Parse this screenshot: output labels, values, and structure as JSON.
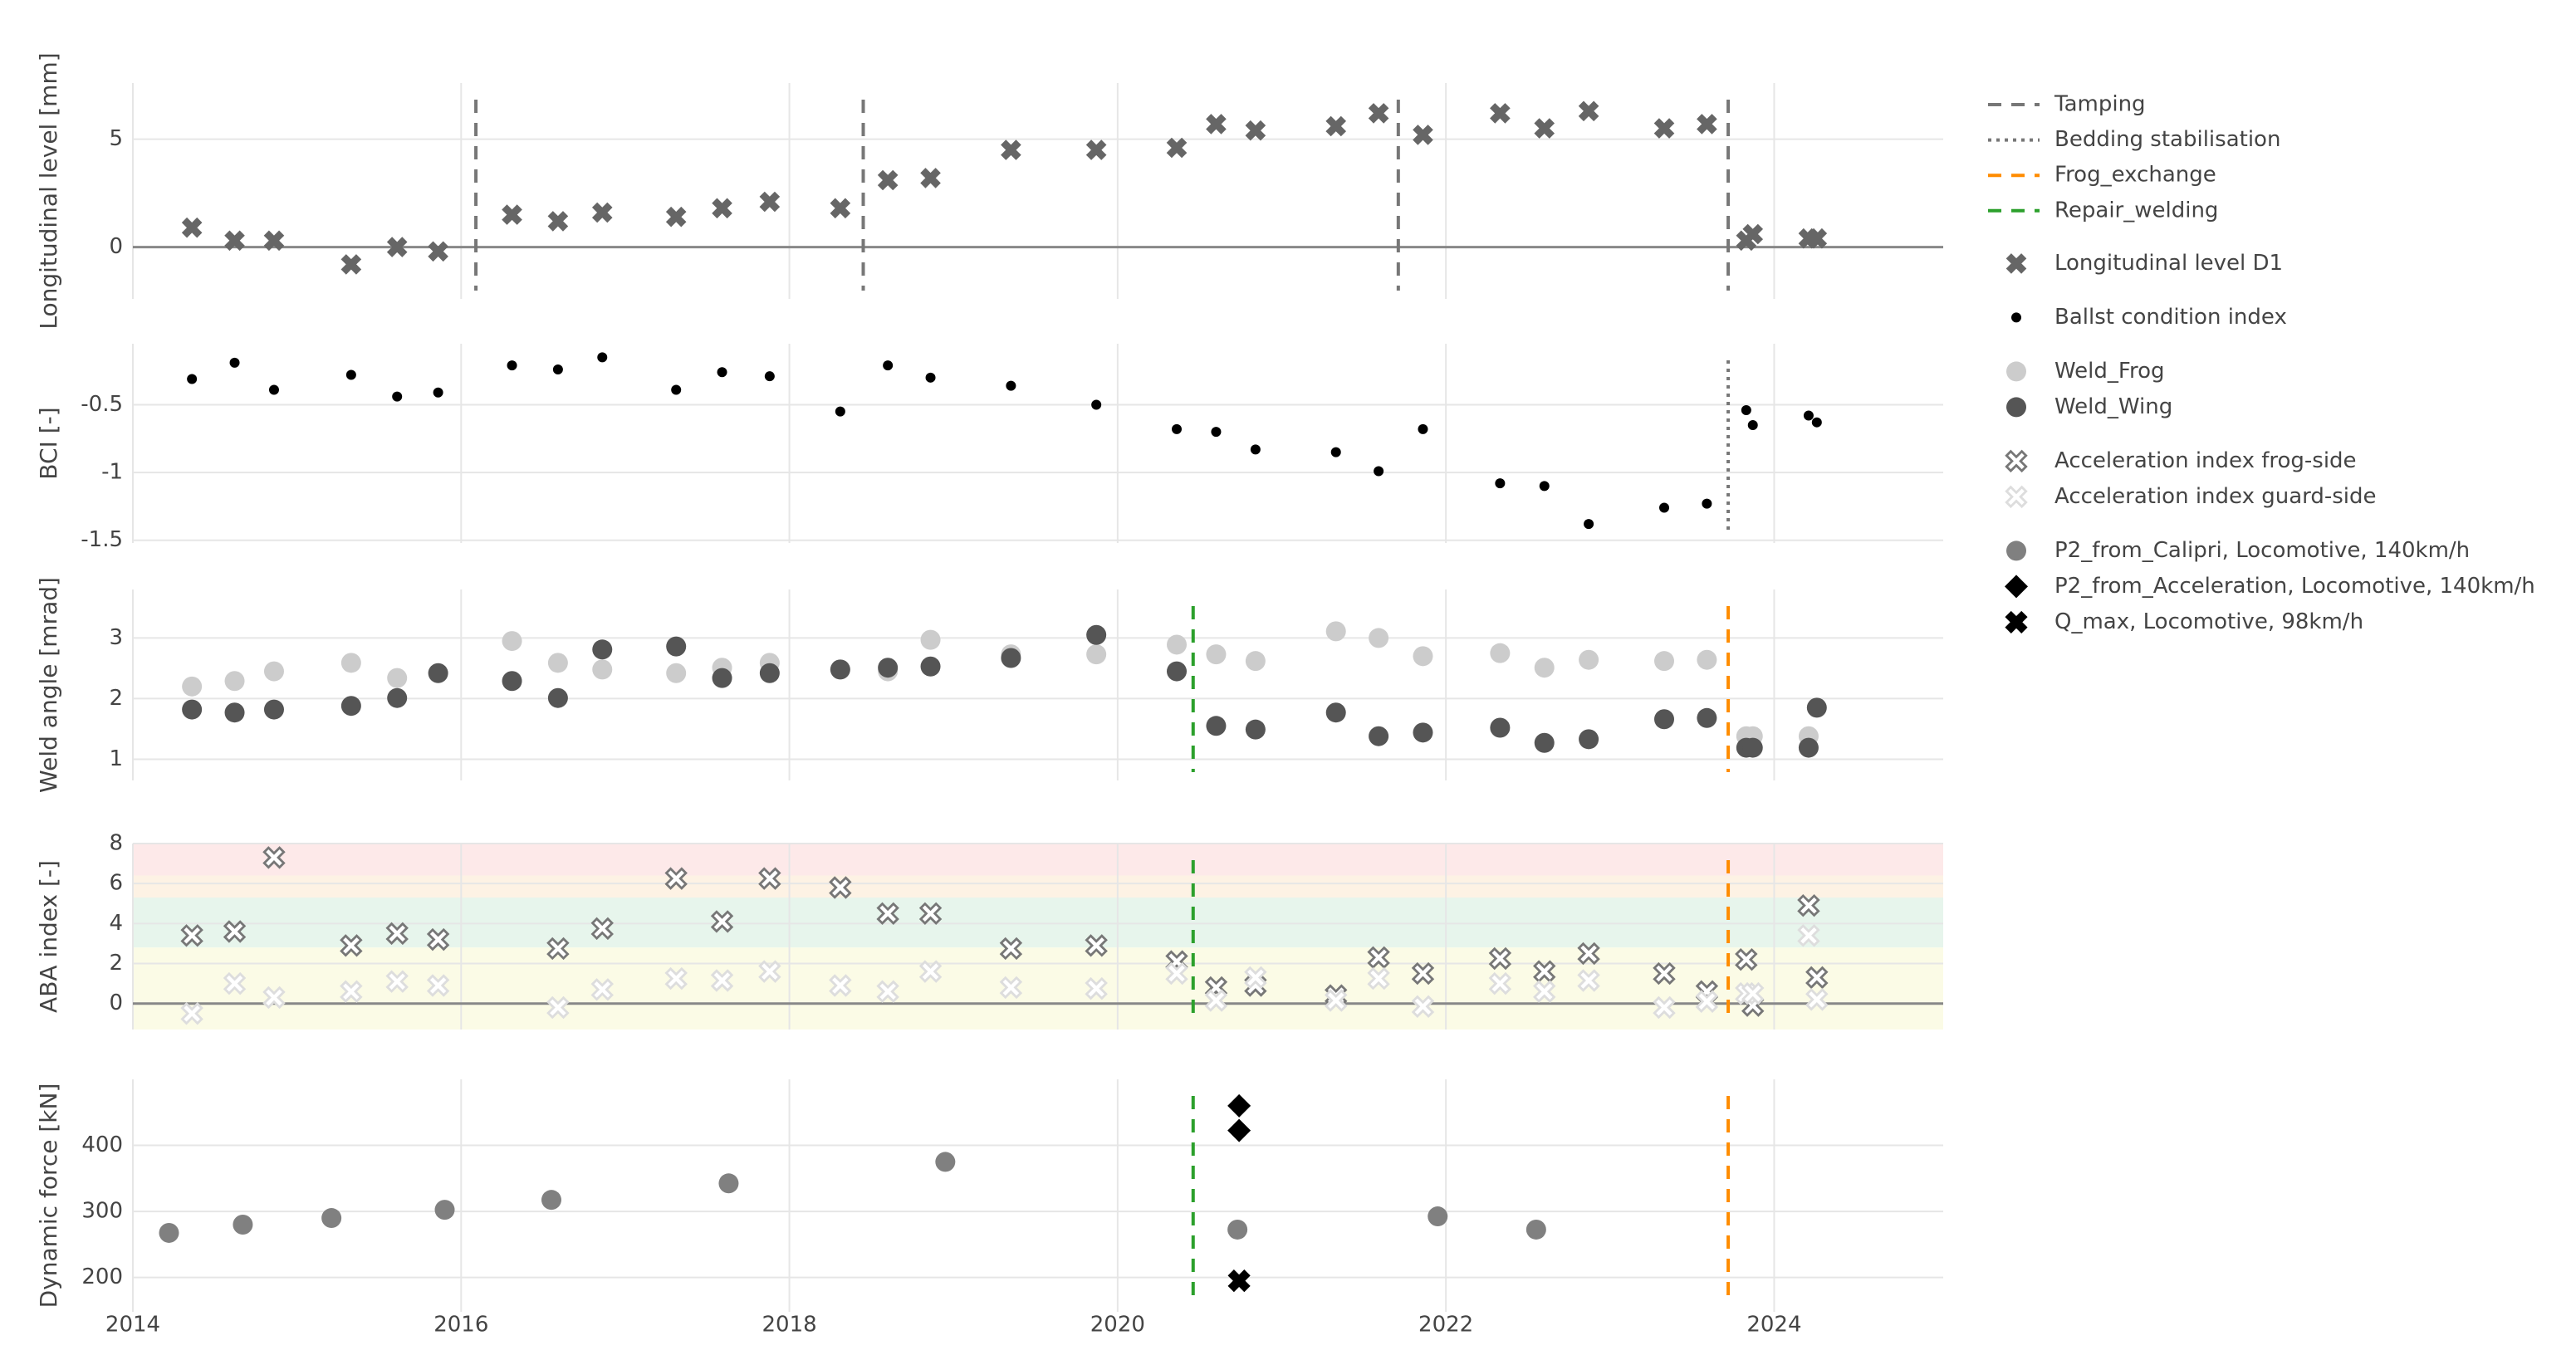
{
  "chart_data": [
    {
      "type": "scatter",
      "ylabel": "Longitudinal level [mm]",
      "xlim": [
        2014,
        2025.03
      ],
      "xticks": [
        2014,
        2016,
        2018,
        2020,
        2022,
        2024
      ],
      "ylim": [
        -2.4,
        7.6
      ],
      "yticks": [
        0,
        5
      ],
      "grid": true,
      "zeroline": true,
      "vlines": [
        {
          "name": "Tamping",
          "color": "#777777",
          "dash": "dash",
          "x": [
            2016.09,
            2018.45,
            2021.71,
            2023.72
          ]
        }
      ],
      "series": [
        {
          "name": "Longitudinal level D1",
          "color": "#666666",
          "marker": "x-thick",
          "x": [
            2014.36,
            2014.62,
            2014.86,
            2015.33,
            2015.61,
            2015.86,
            2016.31,
            2016.59,
            2016.86,
            2017.31,
            2017.59,
            2017.88,
            2018.31,
            2018.6,
            2018.86,
            2019.35,
            2019.87,
            2020.36,
            2020.6,
            2020.84,
            2021.33,
            2021.59,
            2021.86,
            2022.33,
            2022.6,
            2022.87,
            2023.33,
            2023.59,
            2023.83,
            2023.87,
            2024.21,
            2024.26
          ],
          "values": [
            0.9,
            0.3,
            0.3,
            -0.8,
            0.0,
            -0.2,
            1.5,
            1.2,
            1.6,
            1.4,
            1.8,
            2.1,
            1.8,
            3.1,
            3.2,
            4.5,
            4.5,
            4.6,
            5.7,
            5.4,
            5.6,
            6.2,
            5.2,
            6.2,
            5.5,
            6.3,
            5.5,
            5.7,
            0.3,
            0.6,
            0.4,
            0.4
          ]
        }
      ]
    },
    {
      "type": "scatter",
      "ylabel": "BCI [-]",
      "xlim": [
        2014,
        2025.03
      ],
      "xticks": [
        2014,
        2016,
        2018,
        2020,
        2022,
        2024
      ],
      "ylim": [
        -1.52,
        -0.05
      ],
      "yticks": [
        -1.5,
        -1,
        -0.5
      ],
      "grid": true,
      "vlines": [
        {
          "name": "Bedding stabilisation",
          "color": "#777777",
          "dash": "dot",
          "x": [
            2023.72
          ]
        }
      ],
      "series": [
        {
          "name": "Ballst condition index",
          "color": "#000000",
          "marker": "dot",
          "x": [
            2014.36,
            2014.62,
            2014.86,
            2015.33,
            2015.61,
            2015.86,
            2016.31,
            2016.59,
            2016.86,
            2017.31,
            2017.59,
            2017.88,
            2018.31,
            2018.6,
            2018.86,
            2019.35,
            2019.87,
            2020.36,
            2020.6,
            2020.84,
            2021.33,
            2021.59,
            2021.86,
            2022.33,
            2022.6,
            2022.87,
            2023.33,
            2023.59,
            2023.83,
            2023.87,
            2024.21,
            2024.26
          ],
          "values": [
            -0.31,
            -0.19,
            -0.39,
            -0.28,
            -0.44,
            -0.41,
            -0.21,
            -0.24,
            -0.15,
            -0.39,
            -0.26,
            -0.29,
            -0.55,
            -0.21,
            -0.3,
            -0.36,
            -0.5,
            -0.68,
            -0.7,
            -0.83,
            -0.85,
            -0.99,
            -0.68,
            -1.08,
            -1.1,
            -1.38,
            -1.26,
            -1.23,
            -0.54,
            -0.65,
            -0.58,
            -0.63
          ]
        }
      ]
    },
    {
      "type": "scatter",
      "ylabel": "Weld angle [mrad]",
      "xlim": [
        2014,
        2025.03
      ],
      "xticks": [
        2014,
        2016,
        2018,
        2020,
        2022,
        2024
      ],
      "ylim": [
        0.65,
        3.8
      ],
      "yticks": [
        1,
        2,
        3
      ],
      "grid": true,
      "vlines": [
        {
          "name": "Frog_exchange",
          "color": "#ff8c00",
          "dash": "dash",
          "x": [
            2023.72
          ]
        },
        {
          "name": "Repair_welding",
          "color": "#2ca02c",
          "dash": "dash",
          "x": [
            2020.46
          ]
        }
      ],
      "series": [
        {
          "name": "Weld_Frog",
          "color": "#cccccc",
          "marker": "circle",
          "x": [
            2014.36,
            2014.62,
            2014.86,
            2015.33,
            2015.61,
            2016.31,
            2016.59,
            2016.86,
            2017.31,
            2017.59,
            2017.88,
            2018.31,
            2018.6,
            2018.86,
            2019.35,
            2019.87,
            2020.36,
            2020.6,
            2020.84,
            2021.33,
            2021.59,
            2021.86,
            2022.33,
            2022.6,
            2022.87,
            2023.33,
            2023.59,
            2023.83,
            2023.87,
            2024.21
          ],
          "values": [
            2.2,
            2.29,
            2.45,
            2.59,
            2.34,
            2.95,
            2.59,
            2.48,
            2.42,
            2.51,
            2.59,
            2.48,
            2.45,
            2.97,
            2.73,
            2.73,
            2.89,
            2.73,
            2.62,
            3.11,
            3.0,
            2.7,
            2.75,
            2.51,
            2.64,
            2.62,
            2.64,
            1.38,
            1.38,
            1.38
          ]
        },
        {
          "name": "Weld_Wing",
          "color": "#555555",
          "marker": "circle",
          "x": [
            2014.36,
            2014.62,
            2014.86,
            2015.33,
            2015.61,
            2015.86,
            2016.31,
            2016.59,
            2016.86,
            2017.31,
            2017.59,
            2017.88,
            2018.31,
            2018.6,
            2018.86,
            2019.35,
            2019.87,
            2020.36,
            2020.6,
            2020.84,
            2021.33,
            2021.59,
            2021.86,
            2022.33,
            2022.6,
            2022.87,
            2023.33,
            2023.59,
            2023.83,
            2023.87,
            2024.21,
            2024.26
          ],
          "values": [
            1.82,
            1.77,
            1.82,
            1.88,
            2.01,
            2.42,
            2.29,
            2.01,
            2.81,
            2.86,
            2.34,
            2.42,
            2.48,
            2.51,
            2.53,
            2.67,
            3.05,
            2.45,
            1.55,
            1.49,
            1.77,
            1.38,
            1.44,
            1.52,
            1.27,
            1.33,
            1.66,
            1.68,
            1.19,
            1.19,
            1.19,
            1.85
          ]
        }
      ]
    },
    {
      "type": "scatter",
      "ylabel": "ABA index [-]",
      "xlim": [
        2014,
        2025.03
      ],
      "xticks": [
        2014,
        2016,
        2018,
        2020,
        2022,
        2024
      ],
      "ylim": [
        -1.3,
        8
      ],
      "yticks": [
        0,
        2,
        4,
        6,
        8
      ],
      "grid": true,
      "zeroline": true,
      "bands": [
        {
          "y": [
            6.4,
            8
          ],
          "color": "#fde9e9"
        },
        {
          "y": [
            5.3,
            6.4
          ],
          "color": "#fdf2e4"
        },
        {
          "y": [
            2.8,
            5.3
          ],
          "color": "#e7f5ec"
        },
        {
          "y": [
            -1.3,
            2.8
          ],
          "color": "#fbfbe6"
        }
      ],
      "vlines": [
        {
          "color": "#ff8c00",
          "dash": "dash",
          "x": [
            2023.72
          ]
        },
        {
          "color": "#2ca02c",
          "dash": "dash",
          "x": [
            2020.46
          ]
        }
      ],
      "series": [
        {
          "name": "Acceleration index frog-side",
          "color": "#777777",
          "marker": "x-open",
          "x": [
            2014.36,
            2014.62,
            2014.86,
            2015.33,
            2015.61,
            2015.86,
            2016.59,
            2016.86,
            2017.31,
            2017.59,
            2017.88,
            2018.31,
            2018.6,
            2018.86,
            2019.35,
            2019.87,
            2020.36,
            2020.6,
            2020.84,
            2021.33,
            2021.59,
            2021.86,
            2022.33,
            2022.6,
            2022.87,
            2023.33,
            2023.59,
            2023.83,
            2023.87,
            2024.21,
            2024.26
          ],
          "values": [
            3.4,
            3.6,
            7.3,
            2.9,
            3.5,
            3.2,
            2.75,
            3.75,
            6.25,
            4.1,
            6.25,
            5.8,
            4.5,
            4.5,
            2.75,
            2.9,
            2.1,
            0.8,
            0.9,
            0.4,
            2.3,
            1.5,
            2.25,
            1.6,
            2.5,
            1.5,
            0.6,
            2.2,
            -0.1,
            4.9,
            1.3
          ]
        },
        {
          "name": "Acceleration index guard-side",
          "color": "#dddddd",
          "marker": "x-open",
          "x": [
            2014.36,
            2014.62,
            2014.86,
            2015.33,
            2015.61,
            2015.86,
            2016.59,
            2016.86,
            2017.31,
            2017.59,
            2017.88,
            2018.31,
            2018.6,
            2018.86,
            2019.35,
            2019.87,
            2020.36,
            2020.6,
            2020.84,
            2021.33,
            2021.59,
            2021.86,
            2022.33,
            2022.6,
            2022.87,
            2023.33,
            2023.59,
            2023.83,
            2023.87,
            2024.21,
            2024.26
          ],
          "values": [
            -0.5,
            1.0,
            0.3,
            0.6,
            1.1,
            0.9,
            -0.2,
            0.7,
            1.25,
            1.15,
            1.6,
            0.9,
            0.6,
            1.6,
            0.8,
            0.75,
            1.5,
            0.15,
            1.3,
            0.15,
            1.25,
            -0.15,
            1.0,
            0.6,
            1.15,
            -0.2,
            0.1,
            0.5,
            0.5,
            3.4,
            0.2
          ]
        }
      ]
    },
    {
      "type": "scatter",
      "ylabel": "Dynamic force [kN]",
      "xlim": [
        2014,
        2025.03
      ],
      "xticks": [
        2014,
        2016,
        2018,
        2020,
        2022,
        2024
      ],
      "ylim": [
        148,
        500
      ],
      "yticks": [
        200,
        300,
        400
      ],
      "grid": true,
      "vlines": [
        {
          "color": "#2ca02c",
          "dash": "dash",
          "x": [
            2020.46
          ]
        },
        {
          "color": "#ff8c00",
          "dash": "dash",
          "x": [
            2023.72
          ]
        }
      ],
      "series": [
        {
          "name": "P2_from_Calipri, Locomotive, 140km/h",
          "color": "#808080",
          "marker": "circle",
          "x": [
            2014.22,
            2014.67,
            2015.21,
            2015.9,
            2016.55,
            2017.63,
            2018.95,
            2020.73,
            2021.95,
            2022.55
          ],
          "values": [
            267.5,
            280,
            290,
            302.5,
            317.5,
            342.5,
            375,
            272.5,
            292.5,
            272.5
          ]
        },
        {
          "name": "P2_from_Acceleration, Locomotive, 140km/h",
          "color": "#000000",
          "marker": "diamond",
          "x": [
            2020.74,
            2020.74
          ],
          "values": [
            460,
            422.5
          ]
        },
        {
          "name": "Q_max, Locomotive, 98km/h",
          "color": "#000000",
          "marker": "x-bold",
          "x": [
            2020.74
          ],
          "values": [
            195
          ]
        }
      ]
    }
  ]
}
